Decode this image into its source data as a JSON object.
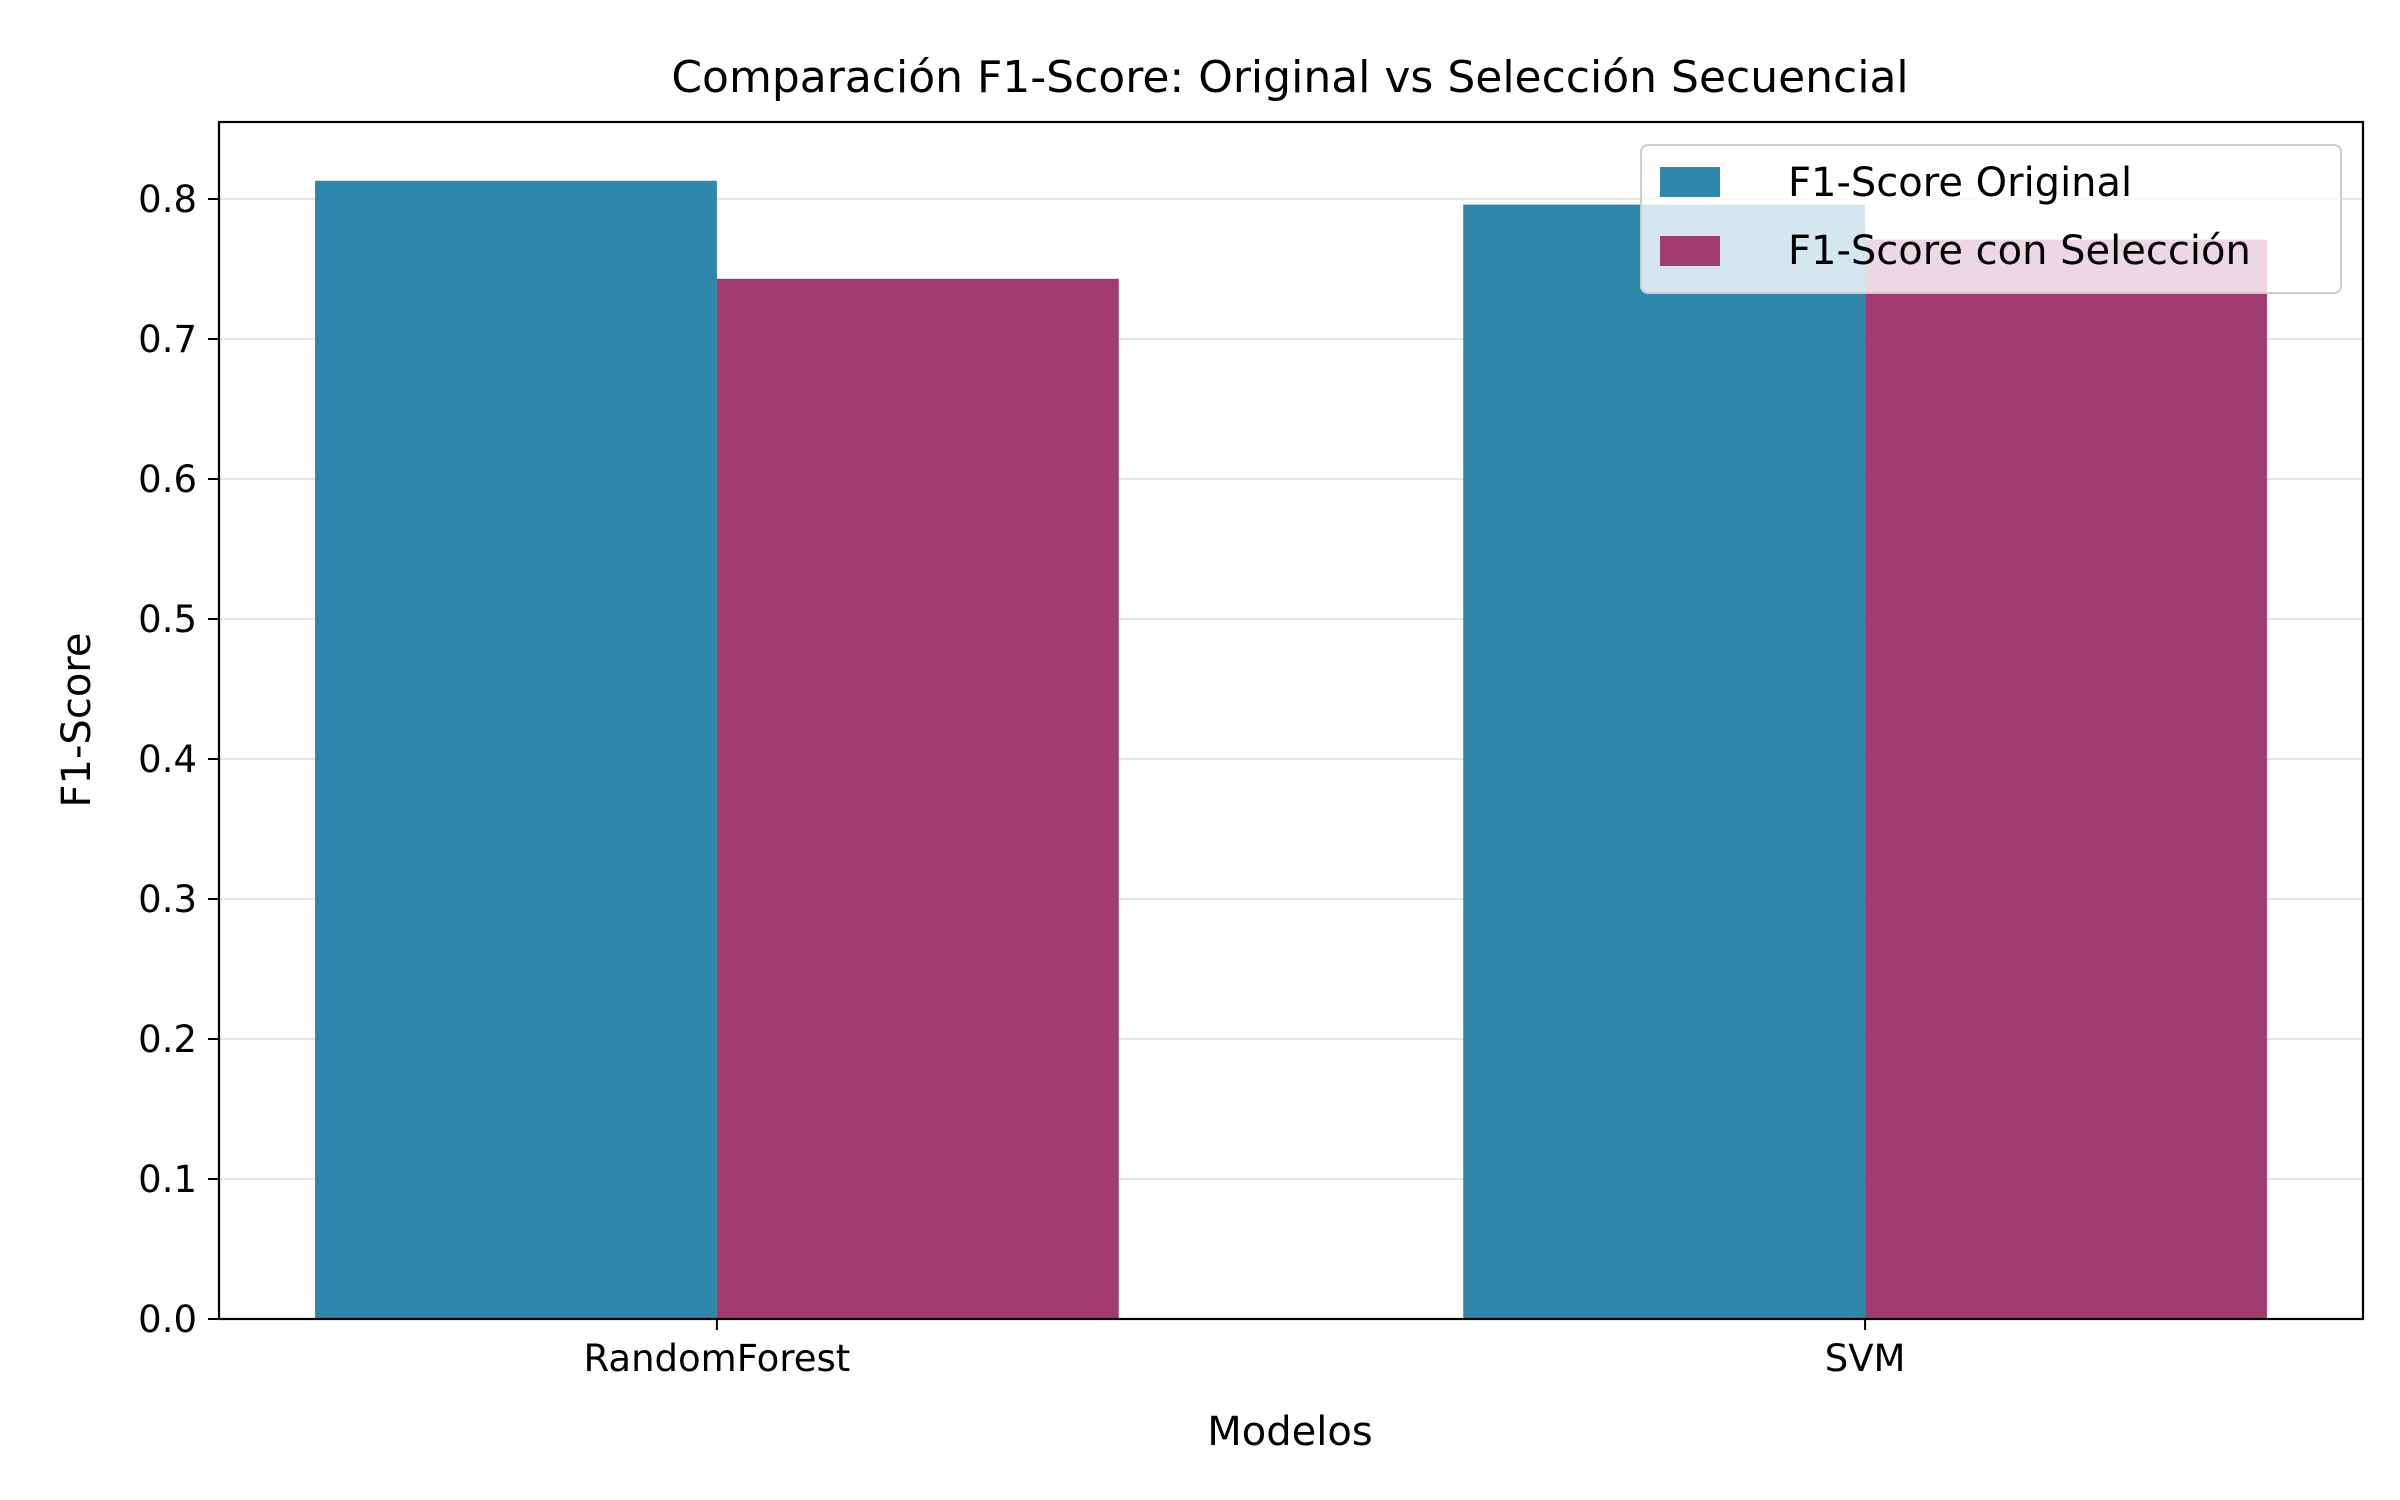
{
  "chart_data": {
    "type": "bar",
    "title": "Comparación F1-Score: Original vs Selección Secuencial",
    "xlabel": "Modelos",
    "ylabel": "F1-Score",
    "categories": [
      "RandomForest",
      "SVM"
    ],
    "series": [
      {
        "name": "F1-Score Original",
        "values": [
          0.813,
          0.796
        ],
        "color": "#2e86ab"
      },
      {
        "name": "F1-Score con Selección",
        "values": [
          0.743,
          0.771
        ],
        "color": "#a23b6f"
      }
    ],
    "ylim": [
      0,
      0.855
    ],
    "yticks": [
      "0.0",
      "0.1",
      "0.2",
      "0.3",
      "0.4",
      "0.5",
      "0.6",
      "0.7",
      "0.8"
    ],
    "grid": true,
    "legend_position": "top-right"
  }
}
